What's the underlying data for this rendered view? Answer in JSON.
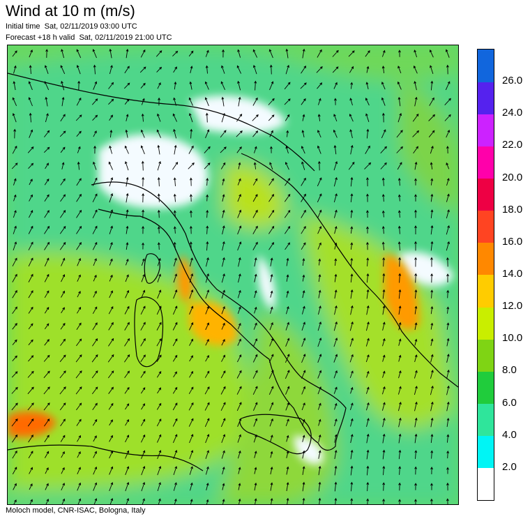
{
  "header": {
    "title": "Wind at 10 m (m/s)",
    "initial_time": "Initial time  Sat, 02/11/2019 03:00 UTC",
    "forecast": "Forecast +18 h valid  Sat, 02/11/2019 21:00 UTC"
  },
  "footer": {
    "credit": "Moloch model, CNR-ISAC, Bologna, Italy"
  },
  "colorbar": {
    "colors": [
      "#ffffff",
      "#00f5f5",
      "#2fe59b",
      "#20cc3c",
      "#7fd414",
      "#c9ee00",
      "#ffcc00",
      "#ff8800",
      "#ff4422",
      "#ee0044",
      "#ff00aa",
      "#cc22ff",
      "#5522ee",
      "#1166dd"
    ],
    "labels": [
      "2.0",
      "4.0",
      "6.0",
      "8.0",
      "10.0",
      "12.0",
      "14.0",
      "16.0",
      "18.0",
      "20.0",
      "22.0",
      "24.0",
      "26.0"
    ]
  }
}
